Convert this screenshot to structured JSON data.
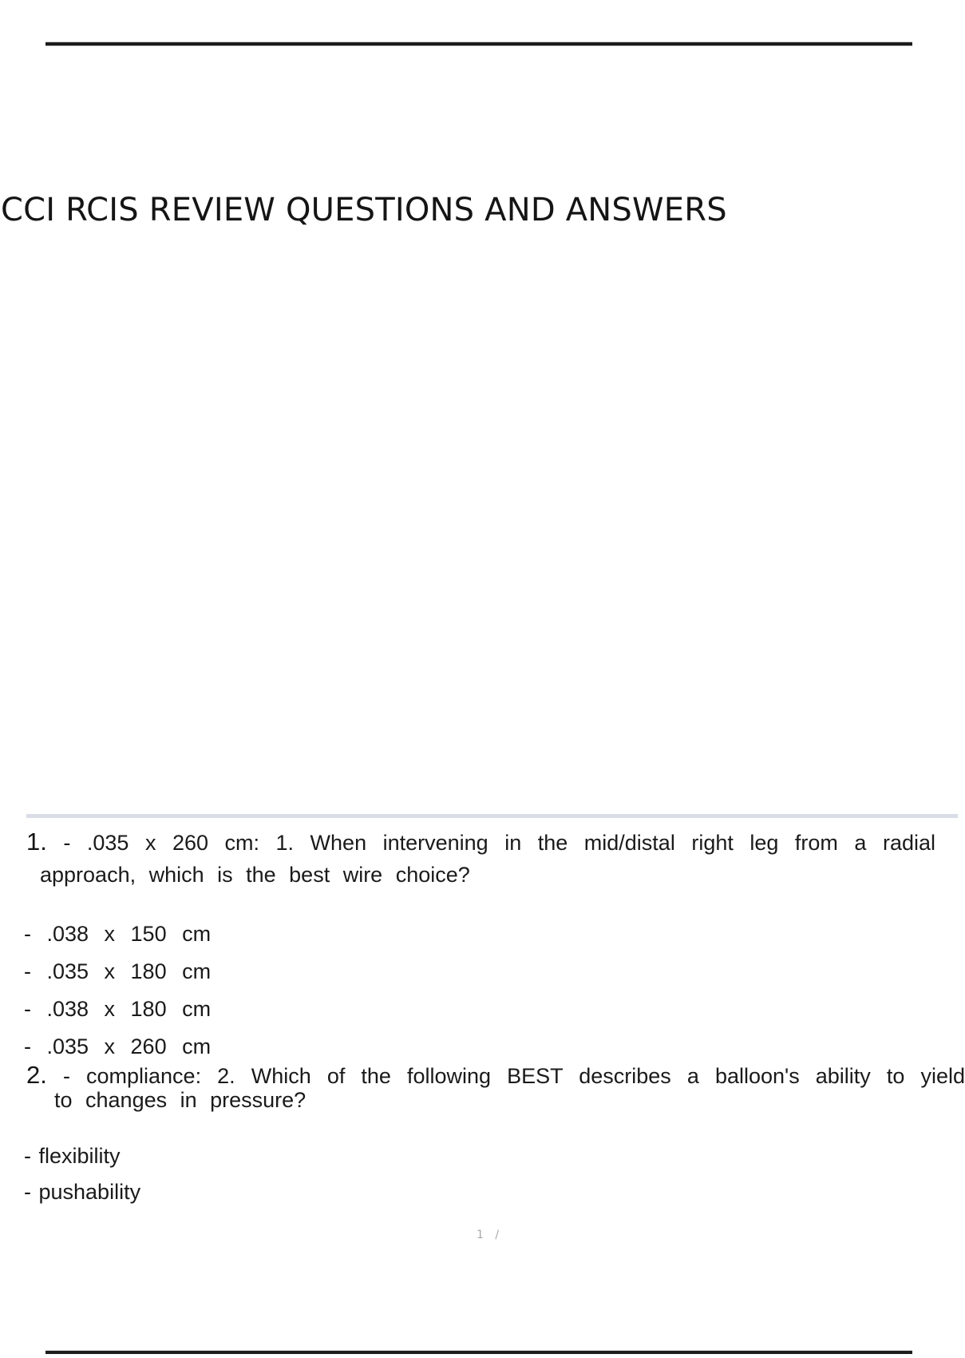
{
  "page": {
    "title": "CCI RCIS REVIEW QUESTIONS AND ANSWERS",
    "page_indicator": "1 /"
  },
  "questions": [
    {
      "number": "1.",
      "line1": "- .035 x 260 cm: 1. When intervening in the mid/distal right leg from a radial",
      "line2": "approach, which is the best wire choice?",
      "options": [
        "- .038 x 150 cm",
        "- .035 x 180 cm",
        "- .038 x 180 cm",
        "- .035 x 260 cm"
      ]
    },
    {
      "number": "2.",
      "line1": "- compliance: 2. Which of the following BEST describes a balloon's ability to yield",
      "line2": "to changes in pressure?",
      "options": [
        "- flexibility",
        "- pushability"
      ]
    }
  ],
  "colors": {
    "text": "#1a1a1a",
    "rule": "#1c1c1c",
    "divider_band": "#dbdde6",
    "page_indicator": "#a8a8ac",
    "background": "#ffffff"
  }
}
